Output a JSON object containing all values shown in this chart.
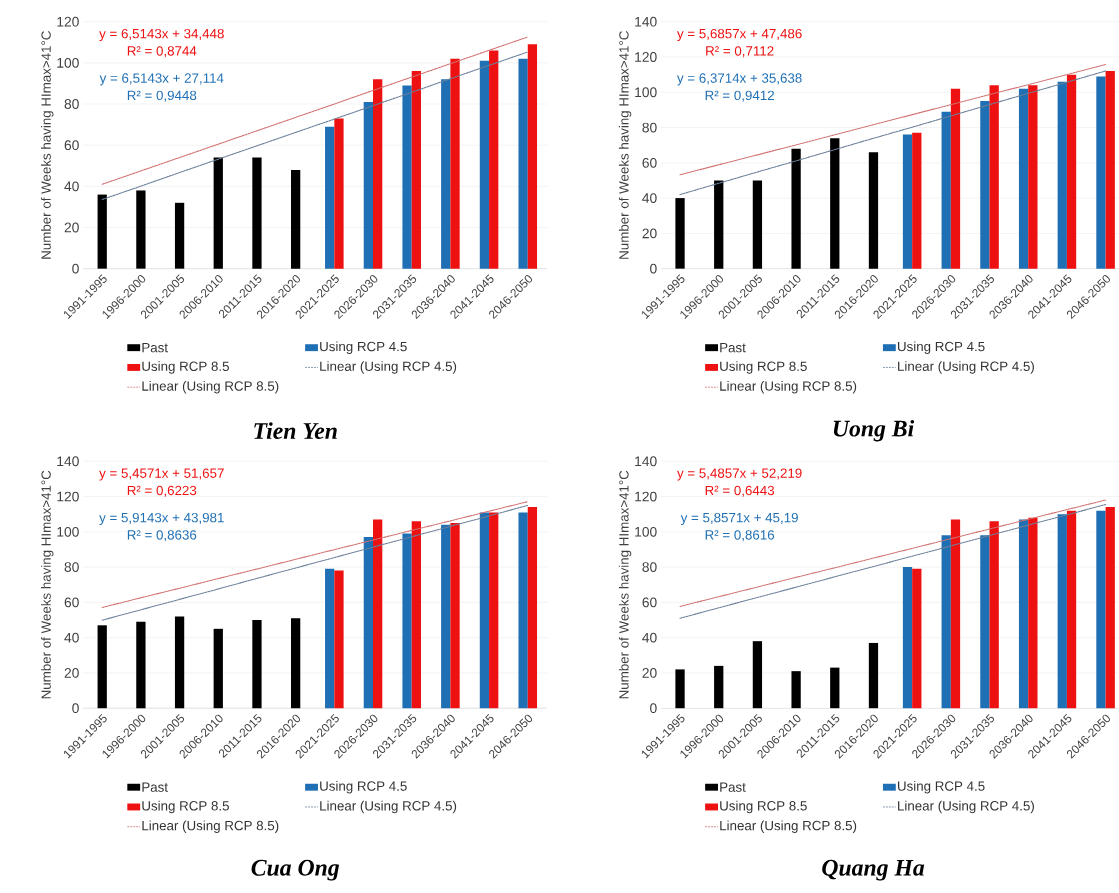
{
  "chart_data": [
    {
      "type": "bar",
      "title": "Tien Yen",
      "ylabel": "Number of Weeks having HImax>41°C",
      "categories": [
        "1991-1995",
        "1996-2000",
        "2001-2005",
        "2006-2010",
        "2011-2015",
        "2016-2020",
        "2021-2025",
        "2026-2030",
        "2031-2035",
        "2036-2040",
        "2041-2045",
        "2046-2050"
      ],
      "ylim": [
        0,
        120
      ],
      "yticks": [
        0,
        20,
        40,
        60,
        80,
        100,
        120
      ],
      "grid": "y",
      "legend": "bottom",
      "annotations": [
        "y = 6,5143x + 34,448",
        "R² = 0,8744",
        "y = 6,5143x + 27,114",
        "R² = 0,9448"
      ],
      "series": [
        {
          "name": "Past",
          "color": "#000000",
          "values": [
            36,
            38,
            32,
            54,
            54,
            48,
            null,
            null,
            null,
            null,
            null,
            null
          ]
        },
        {
          "name": "Using RCP 4.5",
          "color": "#1f6fb4",
          "values": [
            null,
            null,
            null,
            null,
            null,
            null,
            69,
            81,
            89,
            92,
            101,
            102
          ]
        },
        {
          "name": "Using RCP 8.5",
          "color": "#ee1111",
          "values": [
            null,
            null,
            null,
            null,
            null,
            null,
            73,
            92,
            96,
            102,
            106,
            109
          ]
        },
        {
          "name": "Linear (Using RCP 4.5)",
          "type": "line",
          "line_style": "dotted",
          "color": "#6a7f99",
          "values": [
            33.6,
            40.1,
            46.7,
            53.2,
            59.7,
            66.2,
            72.7,
            79.2,
            85.7,
            92.3,
            98.8,
            105.3
          ]
        },
        {
          "name": "Linear (Using RCP 8.5)",
          "type": "line",
          "line_style": "dotted",
          "color": "#d07070",
          "values": [
            41.0,
            47.5,
            54.0,
            60.5,
            67.0,
            73.5,
            80.0,
            86.6,
            93.1,
            99.6,
            106.1,
            112.6
          ]
        }
      ]
    },
    {
      "type": "bar",
      "title": "Uong Bi",
      "ylabel": "Number of Weeks having HImax>41°C",
      "categories": [
        "1991-1995",
        "1996-2000",
        "2001-2005",
        "2006-2010",
        "2011-2015",
        "2016-2020",
        "2021-2025",
        "2026-2030",
        "2031-2035",
        "2036-2040",
        "2041-2045",
        "2046-2050"
      ],
      "ylim": [
        0,
        140
      ],
      "yticks": [
        0,
        20,
        40,
        60,
        80,
        100,
        120,
        140
      ],
      "grid": "y",
      "legend": "bottom",
      "annotations": [
        "y = 5,6857x + 47,486",
        "R² = 0,7112",
        "y = 6,3714x + 35,638",
        "R² = 0,9412"
      ],
      "series": [
        {
          "name": "Past",
          "color": "#000000",
          "values": [
            40,
            50,
            50,
            68,
            74,
            66,
            null,
            null,
            null,
            null,
            null,
            null
          ]
        },
        {
          "name": "Using RCP 4.5",
          "color": "#1f6fb4",
          "values": [
            null,
            null,
            null,
            null,
            null,
            null,
            76,
            89,
            95,
            102,
            106,
            109
          ]
        },
        {
          "name": "Using RCP 8.5",
          "color": "#ee1111",
          "values": [
            null,
            null,
            null,
            null,
            null,
            null,
            77,
            102,
            104,
            104,
            110,
            112
          ]
        },
        {
          "name": "Linear (Using RCP 4.5)",
          "type": "line",
          "line_style": "dotted",
          "color": "#6a7f99",
          "values": [
            42.0,
            48.4,
            54.8,
            61.1,
            67.5,
            73.9,
            80.2,
            86.6,
            93.0,
            99.4,
            105.7,
            112.1
          ]
        },
        {
          "name": "Linear (Using RCP 8.5)",
          "type": "line",
          "line_style": "dotted",
          "color": "#d07070",
          "values": [
            53.2,
            58.9,
            64.5,
            70.2,
            75.9,
            81.6,
            87.3,
            93.0,
            98.7,
            104.3,
            110.0,
            115.7
          ]
        }
      ]
    },
    {
      "type": "bar",
      "title": "Cua Ong",
      "ylabel": "Number of Weeks having HImax>41°C",
      "categories": [
        "1991-1995",
        "1996-2000",
        "2001-2005",
        "2006-2010",
        "2011-2015",
        "2016-2020",
        "2021-2025",
        "2026-2030",
        "2031-2035",
        "2036-2040",
        "2041-2045",
        "2046-2050"
      ],
      "ylim": [
        0,
        140
      ],
      "yticks": [
        0,
        20,
        40,
        60,
        80,
        100,
        120,
        140
      ],
      "grid": "y",
      "legend": "bottom",
      "annotations": [
        "y = 5,4571x + 51,657",
        "R² = 0,6223",
        "y = 5,9143x + 43,981",
        "R² = 0,8636"
      ],
      "series": [
        {
          "name": "Past",
          "color": "#000000",
          "values": [
            47,
            49,
            52,
            45,
            50,
            51,
            null,
            null,
            null,
            null,
            null,
            null
          ]
        },
        {
          "name": "Using RCP 4.5",
          "color": "#1f6fb4",
          "values": [
            null,
            null,
            null,
            null,
            null,
            null,
            79,
            97,
            99,
            104,
            111,
            111
          ]
        },
        {
          "name": "Using RCP 8.5",
          "color": "#ee1111",
          "values": [
            null,
            null,
            null,
            null,
            null,
            null,
            78,
            107,
            106,
            105,
            111,
            114
          ]
        },
        {
          "name": "Linear (Using RCP 4.5)",
          "type": "line",
          "line_style": "dotted",
          "color": "#6a7f99",
          "values": [
            49.9,
            55.8,
            61.7,
            67.6,
            73.6,
            79.5,
            85.4,
            91.3,
            97.2,
            103.1,
            109.0,
            115.0
          ]
        },
        {
          "name": "Linear (Using RCP 8.5)",
          "type": "line",
          "line_style": "dotted",
          "color": "#d07070",
          "values": [
            57.1,
            62.6,
            68.0,
            73.5,
            78.9,
            84.4,
            89.9,
            95.3,
            100.8,
            106.2,
            111.7,
            117.1
          ]
        }
      ]
    },
    {
      "type": "bar",
      "title": "Quang Ha",
      "ylabel": "Number of Weeks having HImax>41°C",
      "categories": [
        "1991-1995",
        "1996-2000",
        "2001-2005",
        "2006-2010",
        "2011-2015",
        "2016-2020",
        "2021-2025",
        "2026-2030",
        "2031-2035",
        "2036-2040",
        "2041-2045",
        "2046-2050"
      ],
      "ylim": [
        0,
        140
      ],
      "yticks": [
        0,
        20,
        40,
        60,
        80,
        100,
        120,
        140
      ],
      "grid": "y",
      "legend": "bottom",
      "annotations": [
        "y = 5,4857x + 52,219",
        "R² = 0,6443",
        "y = 5,8571x + 45,19",
        "R² = 0,8616"
      ],
      "series": [
        {
          "name": "Past",
          "color": "#000000",
          "values": [
            22,
            24,
            38,
            21,
            23,
            37,
            null,
            null,
            null,
            null,
            null,
            null
          ]
        },
        {
          "name": "Using RCP 4.5",
          "color": "#1f6fb4",
          "values": [
            null,
            null,
            null,
            null,
            null,
            null,
            80,
            98,
            98,
            107,
            110,
            112
          ]
        },
        {
          "name": "Using RCP 8.5",
          "color": "#ee1111",
          "values": [
            null,
            null,
            null,
            null,
            null,
            null,
            79,
            107,
            106,
            108,
            112,
            114
          ]
        },
        {
          "name": "Linear (Using RCP 4.5)",
          "type": "line",
          "line_style": "dotted",
          "color": "#6a7f99",
          "values": [
            51.0,
            56.9,
            62.8,
            68.6,
            74.5,
            80.3,
            86.2,
            92.0,
            97.9,
            103.8,
            109.6,
            115.5
          ]
        },
        {
          "name": "Linear (Using RCP 8.5)",
          "type": "line",
          "line_style": "dotted",
          "color": "#d07070",
          "values": [
            57.7,
            63.2,
            68.7,
            74.2,
            79.6,
            85.1,
            90.6,
            96.1,
            101.6,
            107.1,
            112.6,
            118.0
          ]
        }
      ]
    }
  ]
}
